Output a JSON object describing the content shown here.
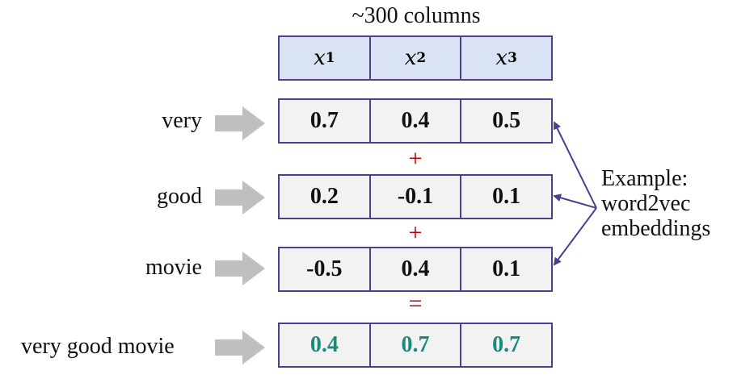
{
  "title": "~300 columns",
  "header": [
    "x",
    "x",
    "x"
  ],
  "header_subscripts": [
    "1",
    "2",
    "3"
  ],
  "rows": [
    {
      "label": "very",
      "values": [
        "0.7",
        "0.4",
        "0.5"
      ]
    },
    {
      "label": "good",
      "values": [
        "0.2",
        "-0.1",
        "0.1"
      ]
    },
    {
      "label": "movie",
      "values": [
        "-0.5",
        "0.4",
        "0.1"
      ]
    }
  ],
  "operators": [
    "+",
    "+",
    "="
  ],
  "result": {
    "label": "very good movie",
    "values": [
      "0.4",
      "0.7",
      "0.7"
    ]
  },
  "annotation": [
    "Example:",
    "word2vec",
    "embeddings"
  ],
  "colors": {
    "border": "#4b3f8f",
    "header_fill": "#dae3f3",
    "cell_fill": "#f2f2f2",
    "operator": "#c00000",
    "result_text": "#1a8a7a",
    "arrow": "#bfbfbf"
  }
}
